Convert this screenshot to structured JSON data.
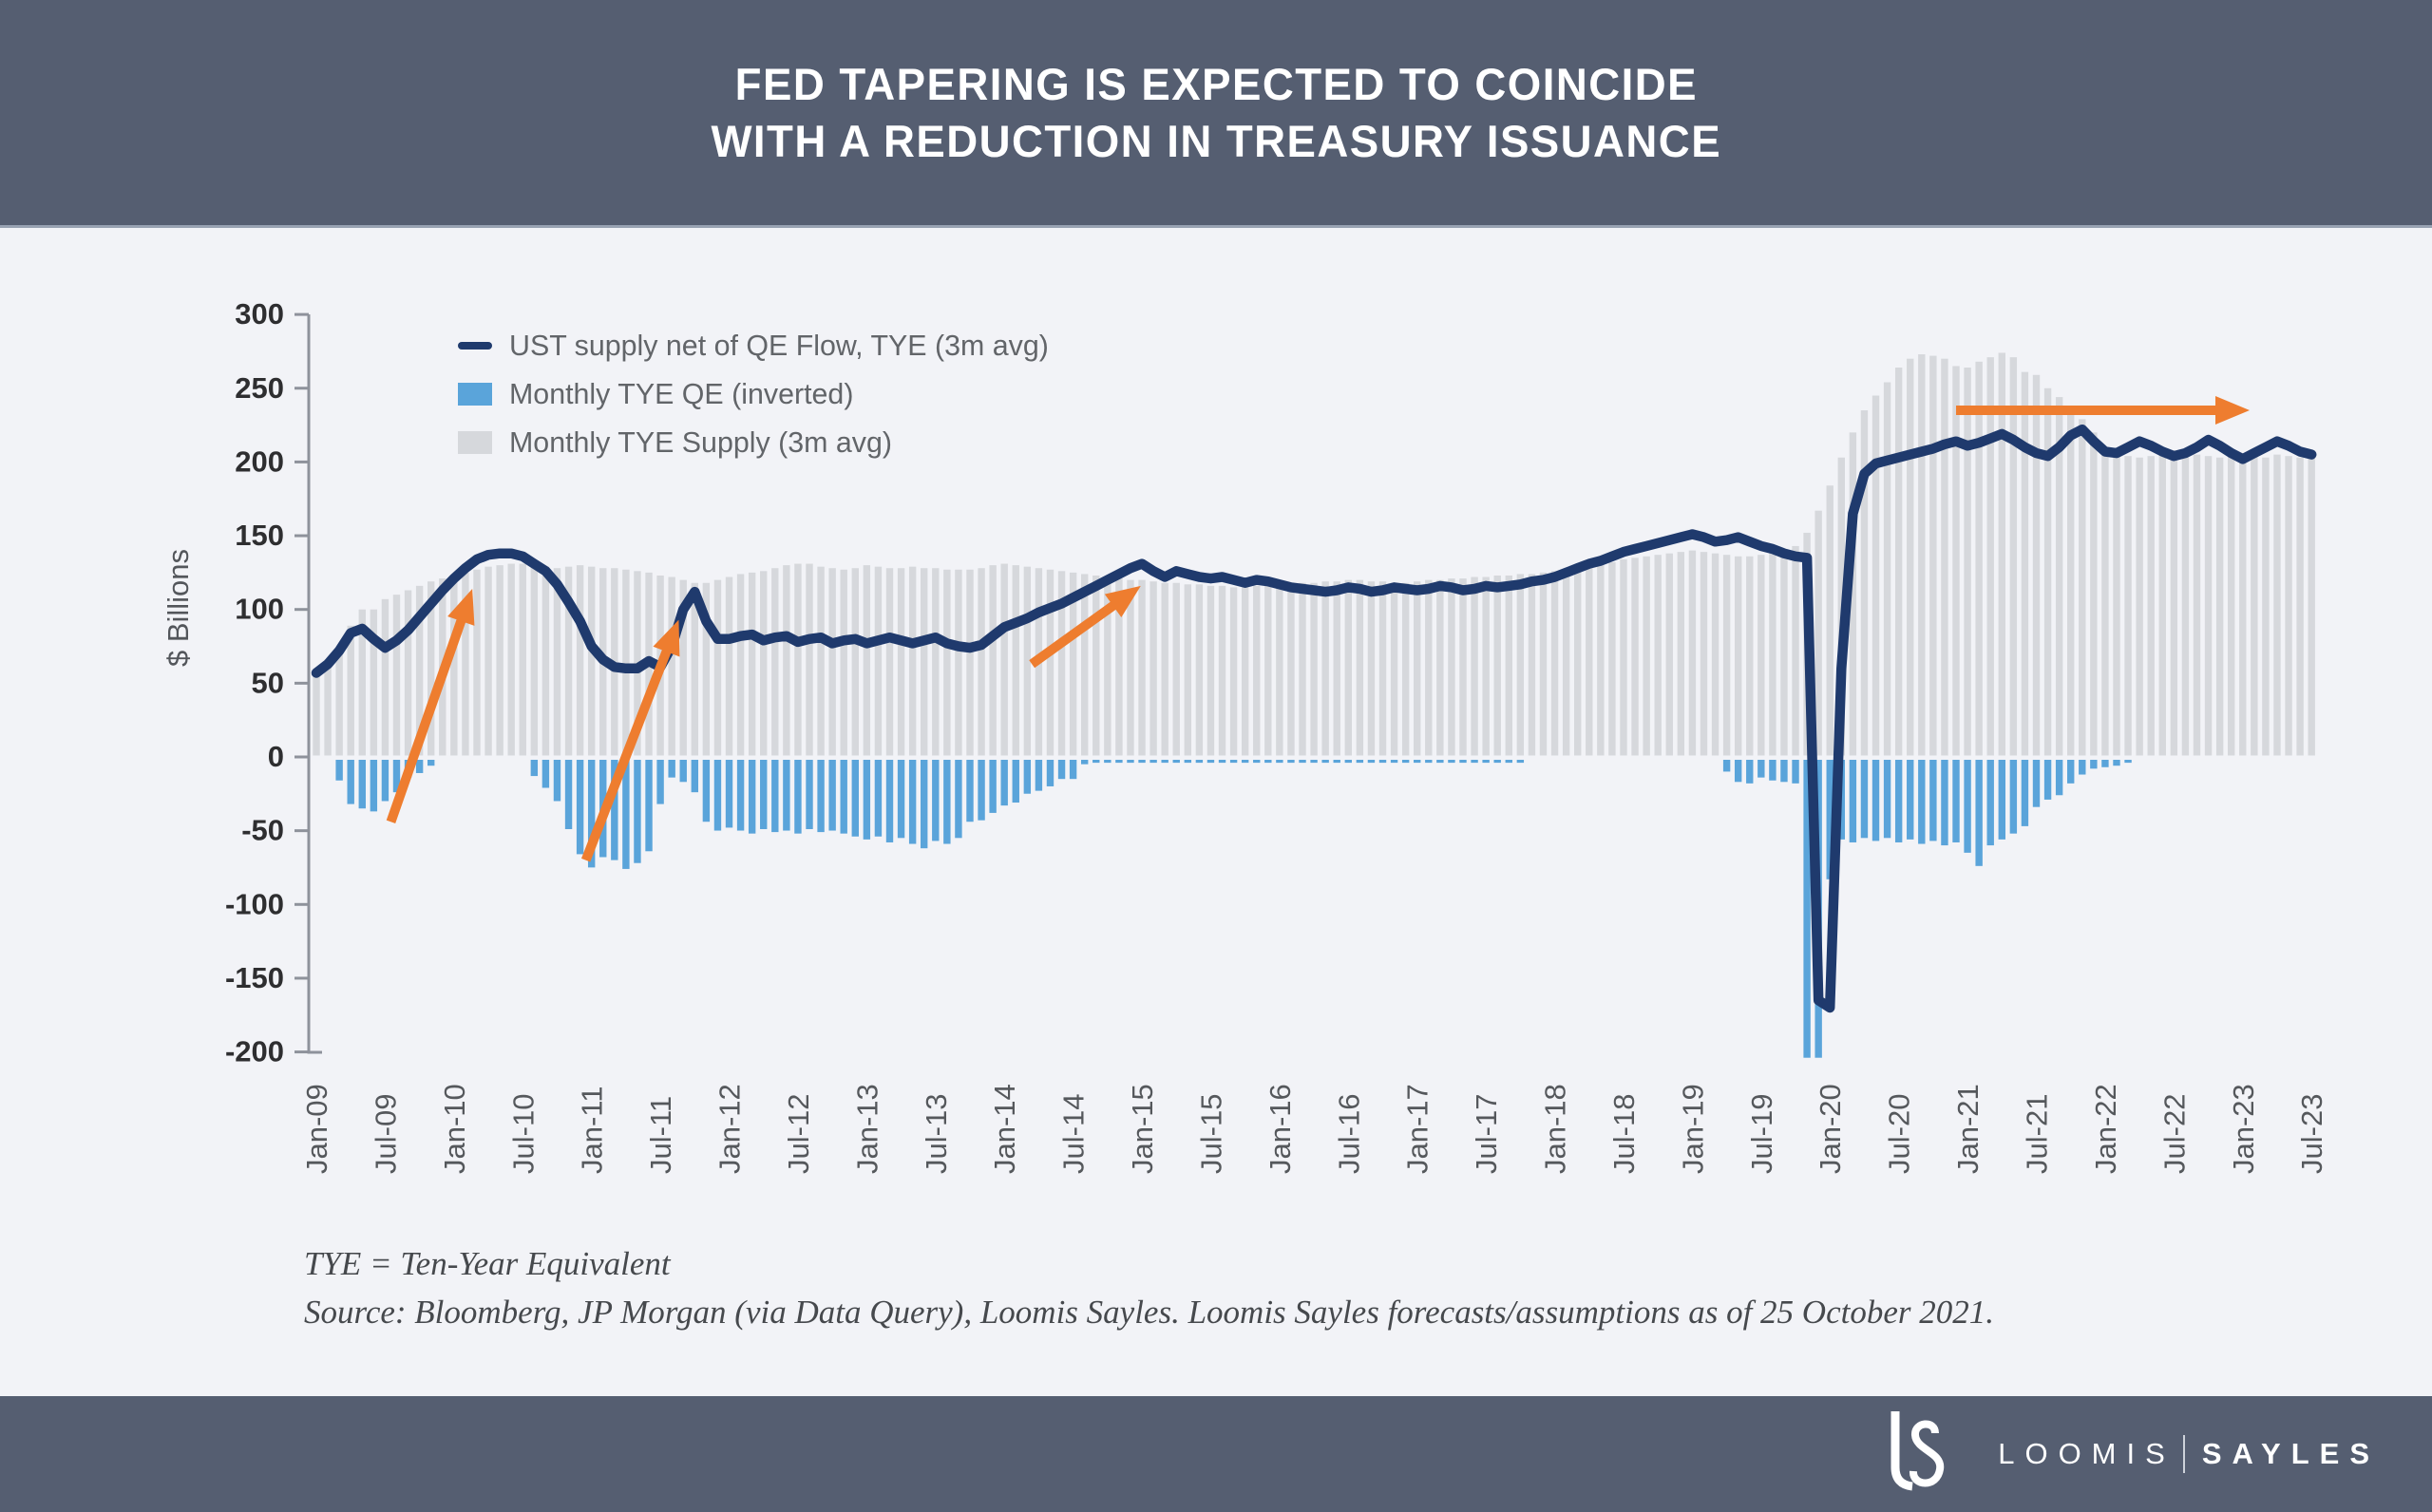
{
  "header": {
    "title_line1": "FED TAPERING IS EXPECTED TO COINCIDE",
    "title_line2": "WITH A REDUCTION IN TREASURY ISSUANCE"
  },
  "legend": {
    "items": [
      {
        "label": "UST supply net of QE Flow, TYE (3m avg)",
        "swatch": "line",
        "color": "#1f3a6d"
      },
      {
        "label": "Monthly TYE QE (inverted)",
        "swatch": "rect",
        "color": "#5aa4da"
      },
      {
        "label": "Monthly TYE Supply (3m avg)",
        "swatch": "rect",
        "color": "#d6d8dc"
      }
    ]
  },
  "chart_data": {
    "type": "bar",
    "subtype": "monthly bars with overlaid line",
    "ylabel": "$ Billions",
    "ylim": [
      -200,
      300
    ],
    "ytick_labels": [
      "300",
      "250",
      "200",
      "150",
      "100",
      "50",
      "0",
      "-50",
      "-100",
      "-150",
      "-200"
    ],
    "x_start": "Jan-09",
    "x_frequency": "monthly",
    "x_tick_labels": [
      "Jan-09",
      "Jul-09",
      "Jan-10",
      "Jul-10",
      "Jan-11",
      "Jul-11",
      "Jan-12",
      "Jul-12",
      "Jan-13",
      "Jul-13",
      "Jan-14",
      "Jul-14",
      "Jan-15",
      "Jul-15",
      "Jan-16",
      "Jul-16",
      "Jan-17",
      "Jul-17",
      "Jan-18",
      "Jul-18",
      "Jan-19",
      "Jul-19",
      "Jan-20",
      "Jul-20",
      "Jan-21",
      "Jul-21",
      "Jan-22",
      "Jul-22",
      "Jan-23",
      "Jul-23"
    ],
    "grid": false,
    "legend_position": "top-left inside plot",
    "series": [
      {
        "name": "Monthly TYE Supply (3m avg)",
        "type": "bar",
        "color": "#d6d8dc",
        "values": [
          60,
          66,
          73,
          89,
          100,
          100,
          107,
          110,
          113,
          116,
          119,
          121,
          123,
          125,
          127,
          129,
          130,
          131,
          131,
          130,
          129,
          128,
          129,
          130,
          129,
          128,
          128,
          127,
          126,
          125,
          123,
          122,
          120,
          118,
          118,
          120,
          122,
          124,
          125,
          126,
          128,
          130,
          131,
          131,
          129,
          128,
          127,
          128,
          130,
          129,
          128,
          128,
          129,
          128,
          128,
          127,
          127,
          127,
          128,
          130,
          131,
          130,
          129,
          128,
          127,
          126,
          125,
          124,
          123,
          122,
          121,
          120,
          120,
          119,
          118,
          118,
          117,
          117,
          116,
          116,
          115,
          115,
          116,
          116,
          117,
          117,
          118,
          118,
          119,
          119,
          120,
          120,
          119,
          119,
          118,
          118,
          119,
          120,
          120,
          121,
          121,
          122,
          122,
          123,
          123,
          124,
          124,
          125,
          126,
          127,
          128,
          129,
          131,
          132,
          134,
          135,
          136,
          137,
          138,
          139,
          140,
          139,
          138,
          137,
          136,
          136,
          137,
          139,
          141,
          143,
          152,
          167,
          184,
          203,
          220,
          235,
          245,
          254,
          264,
          270,
          273,
          272,
          270,
          265,
          264,
          268,
          271,
          274,
          271,
          261,
          259,
          250,
          244,
          235,
          229,
          220,
          210,
          206,
          204,
          203,
          204,
          205,
          204,
          203,
          205,
          204,
          203,
          204,
          205,
          204,
          203,
          205,
          204,
          203,
          204
        ]
      },
      {
        "name": "Monthly TYE QE (inverted)",
        "type": "bar",
        "color": "#5aa4da",
        "values": [
          0,
          0,
          -14,
          -30,
          -33,
          -35,
          -28,
          -22,
          -12,
          -9,
          -4,
          0,
          0,
          0,
          0,
          0,
          0,
          0,
          0,
          -11,
          -19,
          -28,
          -47,
          -64,
          -73,
          -66,
          -68,
          -74,
          -70,
          -62,
          -30,
          -12,
          -15,
          -22,
          -42,
          -48,
          -46,
          -48,
          -50,
          -47,
          -49,
          -48,
          -50,
          -47,
          -49,
          -48,
          -50,
          -52,
          -54,
          -52,
          -56,
          -53,
          -57,
          -60,
          -55,
          -57,
          -53,
          -42,
          -41,
          -36,
          -31,
          -29,
          -23,
          -21,
          -18,
          -13,
          -13,
          -3,
          -2,
          -2,
          -2,
          -2,
          -2,
          -2,
          -2,
          -2,
          -2,
          -2,
          -2,
          -2,
          -2,
          -2,
          -2,
          -2,
          -2,
          -2,
          -2,
          -2,
          -2,
          -2,
          -2,
          -2,
          -2,
          -2,
          -2,
          -2,
          -2,
          -2,
          -2,
          -2,
          -2,
          -2,
          -2,
          -2,
          -2,
          -2,
          0,
          0,
          0,
          0,
          0,
          0,
          0,
          0,
          0,
          0,
          0,
          0,
          0,
          0,
          0,
          0,
          0,
          -8,
          -15,
          -16,
          -12,
          -14,
          -15,
          -16,
          -202,
          -202,
          -81,
          -54,
          -56,
          -53,
          -55,
          -53,
          -56,
          -54,
          -57,
          -55,
          -58,
          -56,
          -63,
          -72,
          -58,
          -54,
          -50,
          -45,
          -32,
          -27,
          -24,
          -16,
          -10,
          -6,
          -5,
          -4,
          -2,
          0,
          0,
          0,
          0,
          0,
          0,
          0,
          0,
          0,
          0,
          0,
          0,
          0,
          0,
          0,
          0
        ]
      },
      {
        "name": "UST supply net of QE Flow, TYE (3m avg)",
        "type": "line",
        "color": "#1f3a6d",
        "values": [
          57,
          63,
          72,
          84,
          87,
          80,
          74,
          79,
          86,
          95,
          104,
          113,
          121,
          128,
          134,
          137,
          138,
          138,
          136,
          131,
          126,
          117,
          105,
          92,
          75,
          66,
          61,
          60,
          60,
          65,
          61,
          75,
          100,
          112,
          92,
          80,
          80,
          82,
          83,
          79,
          81,
          82,
          78,
          80,
          81,
          77,
          79,
          80,
          77,
          79,
          81,
          79,
          77,
          79,
          81,
          77,
          75,
          74,
          76,
          82,
          88,
          91,
          94,
          98,
          101,
          104,
          108,
          112,
          116,
          120,
          124,
          128,
          131,
          126,
          122,
          126,
          124,
          122,
          121,
          122,
          120,
          118,
          120,
          119,
          117,
          115,
          114,
          113,
          112,
          113,
          115,
          114,
          112,
          113,
          115,
          114,
          113,
          114,
          116,
          115,
          113,
          114,
          116,
          115,
          116,
          117,
          119,
          120,
          122,
          125,
          128,
          131,
          133,
          136,
          139,
          141,
          143,
          145,
          147,
          149,
          151,
          149,
          146,
          147,
          149,
          146,
          143,
          141,
          138,
          136,
          135,
          -165,
          -170,
          60,
          165,
          192,
          199,
          201,
          203,
          205,
          207,
          209,
          212,
          214,
          211,
          213,
          216,
          219,
          215,
          210,
          206,
          204,
          210,
          218,
          222,
          214,
          207,
          206,
          210,
          214,
          211,
          207,
          204,
          206,
          210,
          215,
          211,
          206,
          202,
          206,
          210,
          214,
          211,
          207,
          205
        ]
      }
    ],
    "annotations": {
      "arrow_color": "#ee7d2f",
      "arrows": [
        {
          "name": "arrow-2009-rise",
          "from_month": 6.5,
          "from_value": -44,
          "to_month": 13.6,
          "to_value": 114
        },
        {
          "name": "arrow-2011-spike",
          "from_month": 23.5,
          "from_value": -70,
          "to_month": 31.6,
          "to_value": 93
        },
        {
          "name": "arrow-2014-rise",
          "from_month": 62.4,
          "from_value": 63,
          "to_month": 71.9,
          "to_value": 116
        },
        {
          "name": "arrow-2022-flat",
          "from_month": 143.0,
          "from_value": 235,
          "to_month": 168.6,
          "to_value": 235
        }
      ]
    }
  },
  "footnotes": {
    "line1": "TYE = Ten-Year Equivalent",
    "line2": "Source:  Bloomberg, JP Morgan (via Data Query), Loomis Sayles. Loomis Sayles forecasts/assumptions as of 25 October 2021."
  },
  "footer": {
    "brand_left": "LOOMIS",
    "brand_right": "SAYLES"
  },
  "colors": {
    "band": "#555e71",
    "background": "#f2f3f7",
    "navy_line": "#1f3a6d",
    "qe_blue": "#5aa4da",
    "supply_gray": "#d6d8dc",
    "orange": "#ee7d2f",
    "axis": "#8e929b"
  }
}
